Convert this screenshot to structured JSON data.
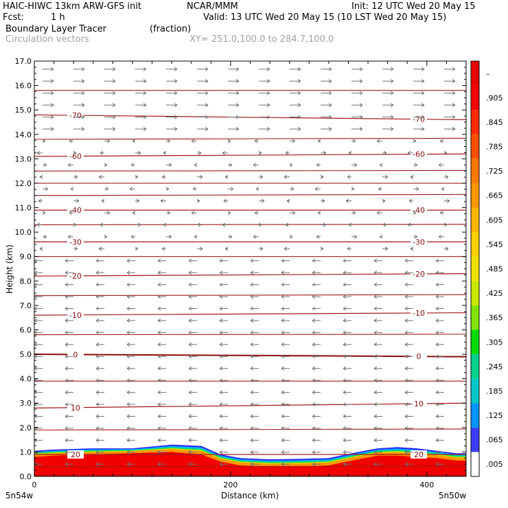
{
  "header": {
    "model": "HAIC-HIWC 13km ARW-GFS init",
    "org": "NCAR/MMM",
    "init": "Init: 12 UTC Wed 20 May 15",
    "fcst_label": "Fcst:",
    "fcst_value": "1 h",
    "valid": "Valid: 13 UTC Wed 20 May 15 (10 LST Wed 20 May 15)",
    "field1": "Boundary Layer Tracer",
    "field1_units": "(fraction)",
    "field2": "Circulation vectors",
    "xy": "XY= 251.0,100.0 to 284.7,100.0"
  },
  "chart_data": {
    "type": "heatmap",
    "title": "Boundary Layer Tracer (fraction)",
    "ylabel": "Height (km)",
    "xlabel": "Distance (km)",
    "ylim": [
      0,
      17
    ],
    "xlim": [
      0,
      440
    ],
    "y_ticks": [
      "0.0",
      "1.0",
      "2.0",
      "3.0",
      "4.0",
      "5.0",
      "6.0",
      "7.0",
      "8.0",
      "9.0",
      "10.0",
      "11.0",
      "12.0",
      "13.0",
      "14.0",
      "15.0",
      "16.0",
      "17.0"
    ],
    "x_ticks": [
      0,
      200,
      400
    ],
    "x_end_labels": {
      "left": "5n54w",
      "right": "5n50w"
    },
    "colorbar_labels": [
      ".005",
      ".065",
      ".125",
      ".185",
      ".245",
      ".305",
      ".365",
      ".425",
      ".485",
      ".545",
      ".605",
      ".665",
      ".725",
      ".785",
      ".845",
      ".905",
      "–"
    ],
    "colorbar_colors": [
      "#ffffff",
      "#3c3cff",
      "#0094ff",
      "#00c8c8",
      "#00d28c",
      "#00dc00",
      "#80e400",
      "#c8e600",
      "#f0e000",
      "#ffd000",
      "#ffb400",
      "#ff9600",
      "#ff7800",
      "#ff5000",
      "#ff2d00",
      "#f20000",
      "#e60000"
    ],
    "temperature_contours": [
      {
        "label": "-70",
        "z": [
          14.8,
          14.6
        ]
      },
      {
        "label": "-60",
        "z": [
          13.1,
          13.2
        ]
      },
      {
        "label": "-40",
        "z": [
          10.9,
          10.9
        ]
      },
      {
        "label": "-30",
        "z": [
          9.6,
          9.6
        ]
      },
      {
        "label": "-20",
        "z": [
          8.2,
          8.3
        ]
      },
      {
        "label": "-10",
        "z": [
          6.6,
          6.7
        ]
      },
      {
        "label": "0",
        "z": [
          5.0,
          4.9
        ]
      },
      {
        "label": "10",
        "z": [
          2.8,
          3.0
        ]
      },
      {
        "label": "20",
        "z": [
          0.9,
          0.9
        ]
      }
    ],
    "extra_contour_heights": [
      0.05,
      0.4,
      1.9,
      3.9,
      5.8,
      7.4,
      9.0,
      10.3,
      11.5,
      12.0,
      12.5,
      13.8,
      15.8
    ],
    "pbl_top_km": {
      "x": [
        0,
        20,
        60,
        100,
        140,
        170,
        190,
        210,
        240,
        270,
        300,
        330,
        350,
        370,
        390,
        410,
        430,
        440
      ],
      "top": [
        1.05,
        1.1,
        1.15,
        1.15,
        1.3,
        1.25,
        0.9,
        0.75,
        0.7,
        0.72,
        0.75,
        1.0,
        1.15,
        1.2,
        1.15,
        1.05,
        0.95,
        0.95
      ],
      "red_top": [
        0.8,
        0.85,
        0.9,
        0.95,
        1.0,
        0.9,
        0.6,
        0.45,
        0.4,
        0.4,
        0.45,
        0.7,
        0.85,
        0.85,
        0.8,
        0.75,
        0.65,
        0.65
      ]
    },
    "wind_regimes": [
      {
        "zmin": 14.0,
        "zmax": 17.0,
        "direction": "east"
      },
      {
        "zmin": 9.0,
        "zmax": 14.0,
        "direction": "light"
      },
      {
        "zmin": 0.0,
        "zmax": 9.0,
        "direction": "west"
      }
    ]
  }
}
